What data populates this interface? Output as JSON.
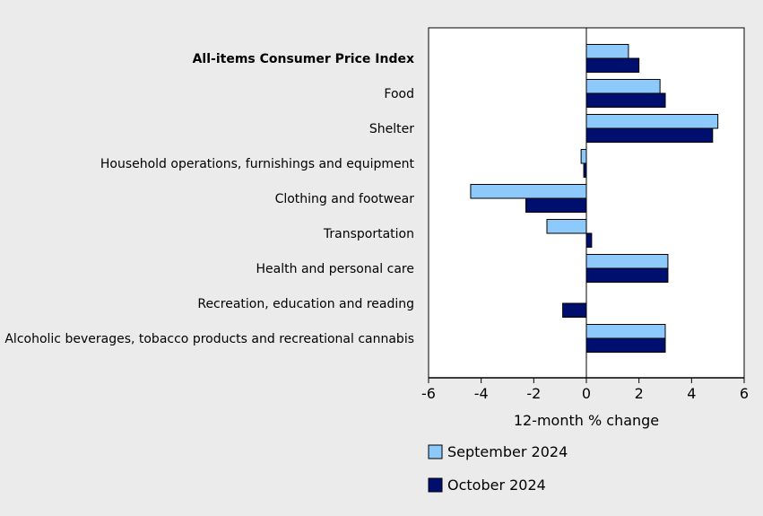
{
  "chart_data": {
    "type": "bar",
    "orientation": "horizontal",
    "categories": [
      "All-items Consumer Price Index",
      "Food",
      "Shelter",
      "Household operations, furnishings and equipment",
      "Clothing and footwear",
      "Transportation",
      "Health and personal care",
      "Recreation, education and reading",
      "Alcoholic beverages, tobacco products and recreational cannabis"
    ],
    "bold_categories": [
      0
    ],
    "series": [
      {
        "name": "September 2024",
        "color": "#8ec9fb",
        "values": [
          1.6,
          2.8,
          5.0,
          -0.2,
          -4.4,
          -1.5,
          3.1,
          0.0,
          3.0
        ]
      },
      {
        "name": "October 2024",
        "color": "#000f6e",
        "values": [
          2.0,
          3.0,
          4.8,
          -0.1,
          -2.3,
          0.2,
          3.1,
          -0.9,
          3.0
        ]
      }
    ],
    "xlabel": "12-month % change",
    "xlim": [
      -6,
      6
    ],
    "xticks": [
      "-6",
      "-4",
      "-2",
      "0",
      "2",
      "4",
      "6"
    ],
    "grid": false,
    "legend_position": "bottom"
  }
}
